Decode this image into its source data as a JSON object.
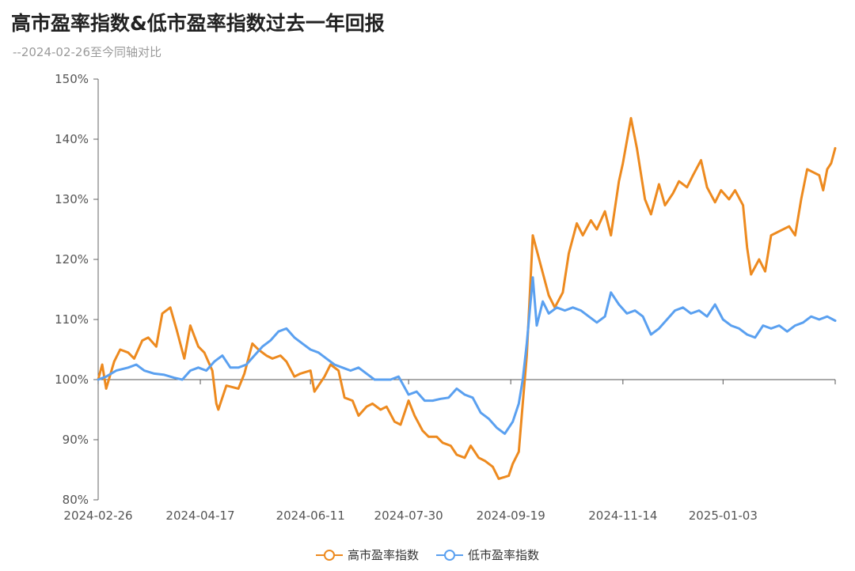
{
  "header": {
    "title": "高市盈率指数&低市盈率指数过去一年回报",
    "subtitle": "--2024-02-26至今同轴对比"
  },
  "chart_data": {
    "type": "line",
    "title": "高市盈率指数&低市盈率指数过去一年回报",
    "subtitle": "--2024-02-26至今同轴对比",
    "xlabel": "",
    "ylabel": "",
    "x_tick_labels": [
      "2024-02-26",
      "2024-04-17",
      "2024-06-11",
      "2024-07-30",
      "2024-09-19",
      "2024-11-14",
      "2025-01-03"
    ],
    "x_range": [
      "2024-02-26",
      "2025-02-28"
    ],
    "y_tick_labels": [
      "80%",
      "90%",
      "100%",
      "110%",
      "120%",
      "130%",
      "140%",
      "150%"
    ],
    "ylim": [
      80,
      150
    ],
    "baseline": 100,
    "grid": false,
    "legend_position": "bottom-center",
    "series": [
      {
        "name": "高市盈率指数",
        "color": "#ED8A1F",
        "points": [
          [
            "2024-02-26",
            100.0
          ],
          [
            "2024-02-28",
            102.5
          ],
          [
            "2024-03-01",
            98.5
          ],
          [
            "2024-03-05",
            103.0
          ],
          [
            "2024-03-08",
            105.0
          ],
          [
            "2024-03-12",
            104.5
          ],
          [
            "2024-03-15",
            103.5
          ],
          [
            "2024-03-19",
            106.5
          ],
          [
            "2024-03-22",
            107.0
          ],
          [
            "2024-03-26",
            105.5
          ],
          [
            "2024-03-29",
            111.0
          ],
          [
            "2024-04-02",
            112.0
          ],
          [
            "2024-04-05",
            108.5
          ],
          [
            "2024-04-09",
            103.5
          ],
          [
            "2024-04-12",
            109.0
          ],
          [
            "2024-04-16",
            105.5
          ],
          [
            "2024-04-19",
            104.5
          ],
          [
            "2024-04-23",
            101.5
          ],
          [
            "2024-04-25",
            96.0
          ],
          [
            "2024-04-26",
            95.0
          ],
          [
            "2024-04-30",
            99.0
          ],
          [
            "2024-05-06",
            98.5
          ],
          [
            "2024-05-09",
            101.0
          ],
          [
            "2024-05-13",
            106.0
          ],
          [
            "2024-05-16",
            105.0
          ],
          [
            "2024-05-20",
            104.0
          ],
          [
            "2024-05-23",
            103.5
          ],
          [
            "2024-05-27",
            104.0
          ],
          [
            "2024-05-30",
            103.0
          ],
          [
            "2024-06-03",
            100.5
          ],
          [
            "2024-06-06",
            101.0
          ],
          [
            "2024-06-11",
            101.5
          ],
          [
            "2024-06-13",
            98.0
          ],
          [
            "2024-06-18",
            100.5
          ],
          [
            "2024-06-21",
            102.5
          ],
          [
            "2024-06-25",
            101.5
          ],
          [
            "2024-06-28",
            97.0
          ],
          [
            "2024-07-02",
            96.5
          ],
          [
            "2024-07-05",
            94.0
          ],
          [
            "2024-07-09",
            95.5
          ],
          [
            "2024-07-12",
            96.0
          ],
          [
            "2024-07-16",
            95.0
          ],
          [
            "2024-07-19",
            95.5
          ],
          [
            "2024-07-23",
            93.0
          ],
          [
            "2024-07-26",
            92.5
          ],
          [
            "2024-07-30",
            96.5
          ],
          [
            "2024-08-02",
            94.0
          ],
          [
            "2024-08-06",
            91.5
          ],
          [
            "2024-08-09",
            90.5
          ],
          [
            "2024-08-13",
            90.5
          ],
          [
            "2024-08-16",
            89.5
          ],
          [
            "2024-08-20",
            89.0
          ],
          [
            "2024-08-23",
            87.5
          ],
          [
            "2024-08-27",
            87.0
          ],
          [
            "2024-08-30",
            89.0
          ],
          [
            "2024-09-03",
            87.0
          ],
          [
            "2024-09-06",
            86.5
          ],
          [
            "2024-09-10",
            85.5
          ],
          [
            "2024-09-13",
            83.5
          ],
          [
            "2024-09-18",
            84.0
          ],
          [
            "2024-09-20",
            86.0
          ],
          [
            "2024-09-23",
            88.0
          ],
          [
            "2024-09-25",
            96.0
          ],
          [
            "2024-09-27",
            104.0
          ],
          [
            "2024-09-30",
            124.0
          ],
          [
            "2024-10-08",
            114.0
          ],
          [
            "2024-10-11",
            112.0
          ],
          [
            "2024-10-15",
            114.5
          ],
          [
            "2024-10-18",
            121.0
          ],
          [
            "2024-10-22",
            126.0
          ],
          [
            "2024-10-25",
            124.0
          ],
          [
            "2024-10-29",
            126.5
          ],
          [
            "2024-11-01",
            125.0
          ],
          [
            "2024-11-05",
            128.0
          ],
          [
            "2024-11-08",
            124.0
          ],
          [
            "2024-11-12",
            133.0
          ],
          [
            "2024-11-14",
            136.0
          ],
          [
            "2024-11-18",
            143.5
          ],
          [
            "2024-11-21",
            138.5
          ],
          [
            "2024-11-25",
            130.0
          ],
          [
            "2024-11-28",
            127.5
          ],
          [
            "2024-12-02",
            132.5
          ],
          [
            "2024-12-05",
            129.0
          ],
          [
            "2024-12-09",
            131.0
          ],
          [
            "2024-12-12",
            133.0
          ],
          [
            "2024-12-16",
            132.0
          ],
          [
            "2024-12-19",
            134.0
          ],
          [
            "2024-12-23",
            136.5
          ],
          [
            "2024-12-26",
            132.0
          ],
          [
            "2024-12-30",
            129.5
          ],
          [
            "2025-01-02",
            131.5
          ],
          [
            "2025-01-06",
            130.0
          ],
          [
            "2025-01-09",
            131.5
          ],
          [
            "2025-01-13",
            129.0
          ],
          [
            "2025-01-15",
            122.0
          ],
          [
            "2025-01-17",
            117.5
          ],
          [
            "2025-01-21",
            120.0
          ],
          [
            "2025-01-24",
            118.0
          ],
          [
            "2025-01-27",
            124.0
          ],
          [
            "2025-02-05",
            125.5
          ],
          [
            "2025-02-08",
            124.0
          ],
          [
            "2025-02-11",
            130.0
          ],
          [
            "2025-02-14",
            135.0
          ],
          [
            "2025-02-17",
            134.5
          ],
          [
            "2025-02-20",
            134.0
          ],
          [
            "2025-02-22",
            131.5
          ],
          [
            "2025-02-24",
            135.0
          ],
          [
            "2025-02-26",
            136.0
          ],
          [
            "2025-02-28",
            138.5
          ]
        ]
      },
      {
        "name": "低市盈率指数",
        "color": "#5AA0F0",
        "points": [
          [
            "2024-02-26",
            100.0
          ],
          [
            "2024-03-01",
            100.5
          ],
          [
            "2024-03-06",
            101.5
          ],
          [
            "2024-03-12",
            102.0
          ],
          [
            "2024-03-16",
            102.5
          ],
          [
            "2024-03-20",
            101.5
          ],
          [
            "2024-03-25",
            101.0
          ],
          [
            "2024-03-30",
            100.8
          ],
          [
            "2024-04-04",
            100.3
          ],
          [
            "2024-04-08",
            100.0
          ],
          [
            "2024-04-12",
            101.5
          ],
          [
            "2024-04-16",
            102.0
          ],
          [
            "2024-04-20",
            101.5
          ],
          [
            "2024-04-24",
            103.0
          ],
          [
            "2024-04-28",
            104.0
          ],
          [
            "2024-05-02",
            102.0
          ],
          [
            "2024-05-06",
            102.0
          ],
          [
            "2024-05-10",
            102.5
          ],
          [
            "2024-05-14",
            104.0
          ],
          [
            "2024-05-18",
            105.5
          ],
          [
            "2024-05-22",
            106.5
          ],
          [
            "2024-05-26",
            108.0
          ],
          [
            "2024-05-30",
            108.5
          ],
          [
            "2024-06-03",
            107.0
          ],
          [
            "2024-06-07",
            106.0
          ],
          [
            "2024-06-11",
            105.0
          ],
          [
            "2024-06-15",
            104.5
          ],
          [
            "2024-06-19",
            103.5
          ],
          [
            "2024-06-23",
            102.5
          ],
          [
            "2024-06-27",
            102.0
          ],
          [
            "2024-07-01",
            101.5
          ],
          [
            "2024-07-05",
            102.0
          ],
          [
            "2024-07-09",
            101.0
          ],
          [
            "2024-07-13",
            100.0
          ],
          [
            "2024-07-17",
            100.0
          ],
          [
            "2024-07-21",
            100.0
          ],
          [
            "2024-07-25",
            100.5
          ],
          [
            "2024-07-30",
            97.5
          ],
          [
            "2024-08-03",
            98.0
          ],
          [
            "2024-08-07",
            96.5
          ],
          [
            "2024-08-11",
            96.5
          ],
          [
            "2024-08-15",
            96.8
          ],
          [
            "2024-08-19",
            97.0
          ],
          [
            "2024-08-23",
            98.5
          ],
          [
            "2024-08-27",
            97.5
          ],
          [
            "2024-08-31",
            97.0
          ],
          [
            "2024-09-04",
            94.5
          ],
          [
            "2024-09-08",
            93.5
          ],
          [
            "2024-09-12",
            92.0
          ],
          [
            "2024-09-16",
            91.0
          ],
          [
            "2024-09-20",
            93.0
          ],
          [
            "2024-09-23",
            96.0
          ],
          [
            "2024-09-25",
            100.0
          ],
          [
            "2024-09-27",
            106.0
          ],
          [
            "2024-09-30",
            117.0
          ],
          [
            "2024-10-02",
            109.0
          ],
          [
            "2024-10-05",
            113.0
          ],
          [
            "2024-10-08",
            111.0
          ],
          [
            "2024-10-12",
            112.0
          ],
          [
            "2024-10-16",
            111.5
          ],
          [
            "2024-10-20",
            112.0
          ],
          [
            "2024-10-24",
            111.5
          ],
          [
            "2024-10-28",
            110.5
          ],
          [
            "2024-11-01",
            109.5
          ],
          [
            "2024-11-05",
            110.5
          ],
          [
            "2024-11-08",
            114.5
          ],
          [
            "2024-11-12",
            112.5
          ],
          [
            "2024-11-16",
            111.0
          ],
          [
            "2024-11-20",
            111.5
          ],
          [
            "2024-11-24",
            110.5
          ],
          [
            "2024-11-28",
            107.5
          ],
          [
            "2024-12-02",
            108.5
          ],
          [
            "2024-12-06",
            110.0
          ],
          [
            "2024-12-10",
            111.5
          ],
          [
            "2024-12-14",
            112.0
          ],
          [
            "2024-12-18",
            111.0
          ],
          [
            "2024-12-22",
            111.5
          ],
          [
            "2024-12-26",
            110.5
          ],
          [
            "2024-12-30",
            112.5
          ],
          [
            "2025-01-03",
            110.0
          ],
          [
            "2025-01-07",
            109.0
          ],
          [
            "2025-01-11",
            108.5
          ],
          [
            "2025-01-15",
            107.5
          ],
          [
            "2025-01-19",
            107.0
          ],
          [
            "2025-01-23",
            109.0
          ],
          [
            "2025-01-27",
            108.5
          ],
          [
            "2025-01-31",
            109.0
          ],
          [
            "2025-02-04",
            108.0
          ],
          [
            "2025-02-08",
            109.0
          ],
          [
            "2025-02-12",
            109.5
          ],
          [
            "2025-02-16",
            110.5
          ],
          [
            "2025-02-20",
            110.0
          ],
          [
            "2025-02-24",
            110.5
          ],
          [
            "2025-02-28",
            109.8
          ]
        ]
      }
    ]
  }
}
